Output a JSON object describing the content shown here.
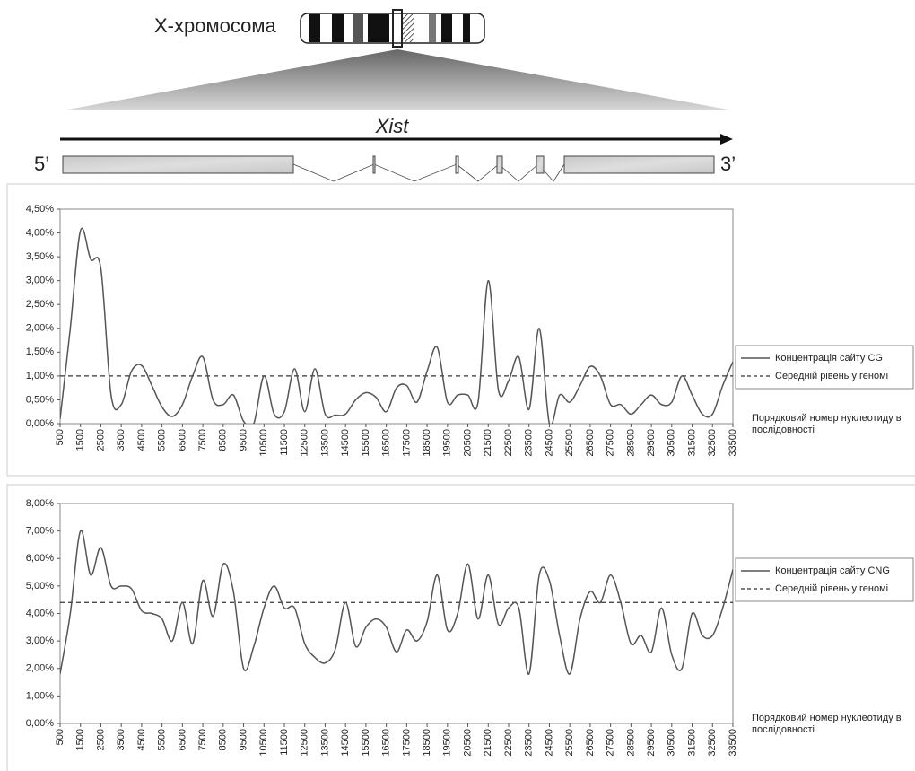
{
  "diagram": {
    "chromosome_label": "X-хромосома",
    "gene_label": "Xist",
    "left_end": "5’",
    "right_end": "3’"
  },
  "chart_data": [
    {
      "type": "line",
      "x": [
        500,
        1000,
        1500,
        2000,
        2500,
        3000,
        3500,
        4000,
        4500,
        5000,
        5500,
        6000,
        6500,
        7000,
        7500,
        8000,
        8500,
        9000,
        9500,
        10000,
        10500,
        11000,
        11500,
        12000,
        12500,
        13000,
        13500,
        14000,
        14500,
        15000,
        15500,
        16000,
        16500,
        17000,
        17500,
        18000,
        18500,
        19000,
        19500,
        20000,
        20500,
        21000,
        21500,
        22000,
        22500,
        23000,
        23500,
        24000,
        24500,
        25000,
        25500,
        26000,
        26500,
        27000,
        27500,
        28000,
        28500,
        29000,
        29500,
        30000,
        30500,
        31000,
        31500,
        32000,
        32500,
        33000,
        33500
      ],
      "series": [
        {
          "name": "Концентрація сайту CG",
          "color": "#555555",
          "values": [
            0.1,
            2.0,
            4.05,
            3.45,
            3.25,
            0.6,
            0.4,
            1.1,
            1.22,
            0.8,
            0.35,
            0.15,
            0.4,
            1.0,
            1.4,
            0.5,
            0.4,
            0.6,
            0.05,
            0,
            1.0,
            0.2,
            0.25,
            1.15,
            0.25,
            1.15,
            0.2,
            0.18,
            0.2,
            0.5,
            0.65,
            0.55,
            0.25,
            0.75,
            0.8,
            0.45,
            1.1,
            1.6,
            0.45,
            0.6,
            0.6,
            0.45,
            3.0,
            0.7,
            0.9,
            1.4,
            0.3,
            2.0,
            0,
            0.6,
            0.45,
            0.8,
            1.2,
            1.0,
            0.4,
            0.4,
            0.2,
            0.4,
            0.6,
            0.4,
            0.45,
            1.0,
            0.6,
            0.2,
            0.2,
            0.8,
            1.3
          ]
        }
      ],
      "reference": {
        "name": "Середній рівень у геномі",
        "value": 1.0,
        "color": "#333333"
      },
      "xlim": [
        500,
        33500
      ],
      "xticks": [
        500,
        1500,
        2500,
        3500,
        4500,
        5500,
        6500,
        7500,
        8500,
        9500,
        10500,
        11500,
        12500,
        13500,
        14500,
        15500,
        16500,
        17500,
        18500,
        19500,
        20500,
        21500,
        22500,
        23500,
        24500,
        25500,
        26500,
        27500,
        28500,
        29500,
        30500,
        31500,
        32500,
        33500
      ],
      "ylim": [
        0,
        4.5
      ],
      "yticks": [
        {
          "value": 0,
          "label": "0,00%"
        },
        {
          "value": 0.5,
          "label": "0,50%"
        },
        {
          "value": 1,
          "label": "1,00%"
        },
        {
          "value": 1.5,
          "label": "1,50%"
        },
        {
          "value": 2,
          "label": "2,00%"
        },
        {
          "value": 2.5,
          "label": "2,50%"
        },
        {
          "value": 3,
          "label": "3,00%"
        },
        {
          "value": 3.5,
          "label": "3,50%"
        },
        {
          "value": 4,
          "label": "4,00%"
        },
        {
          "value": 4.5,
          "label": "4,50%"
        }
      ],
      "x_label": "Порядковий номер нуклеотиду в послідовності",
      "legend": "right"
    },
    {
      "type": "line",
      "x": [
        500,
        1000,
        1500,
        2000,
        2500,
        3000,
        3500,
        4000,
        4500,
        5000,
        5500,
        6000,
        6500,
        7000,
        7500,
        8000,
        8500,
        9000,
        9500,
        10000,
        10500,
        11000,
        11500,
        12000,
        12500,
        13000,
        13500,
        14000,
        14500,
        15000,
        15500,
        16000,
        16500,
        17000,
        17500,
        18000,
        18500,
        19000,
        19500,
        20000,
        20500,
        21000,
        21500,
        22000,
        22500,
        23000,
        23500,
        24000,
        24500,
        25000,
        25500,
        26000,
        26500,
        27000,
        27500,
        28000,
        28500,
        29000,
        29500,
        30000,
        30500,
        31000,
        31500,
        32000,
        32500,
        33000,
        33500
      ],
      "series": [
        {
          "name": "Концентрація сайту CNG",
          "color": "#555555",
          "values": [
            1.8,
            4.0,
            7.0,
            5.4,
            6.4,
            5.0,
            5.0,
            4.9,
            4.1,
            4.0,
            3.8,
            3.0,
            4.4,
            2.9,
            5.2,
            3.9,
            5.8,
            4.8,
            2.0,
            2.8,
            4.2,
            5.0,
            4.2,
            4.2,
            2.9,
            2.4,
            2.2,
            2.7,
            4.4,
            2.8,
            3.5,
            3.8,
            3.5,
            2.6,
            3.4,
            3.0,
            3.7,
            5.4,
            3.4,
            4.0,
            5.8,
            3.8,
            5.4,
            3.6,
            4.2,
            4.2,
            1.8,
            5.4,
            5.2,
            3.2,
            1.8,
            3.8,
            4.8,
            4.4,
            5.4,
            4.4,
            2.9,
            3.2,
            2.6,
            4.2,
            2.5,
            2.0,
            4.0,
            3.2,
            3.2,
            4.2,
            5.6
          ]
        }
      ],
      "reference": {
        "name": "Середній рівень у геномі",
        "value": 4.4,
        "color": "#333333"
      },
      "xlim": [
        500,
        33500
      ],
      "xticks": [
        500,
        1500,
        2500,
        3500,
        4500,
        5500,
        6500,
        7500,
        8500,
        9500,
        10500,
        11500,
        12500,
        13500,
        14500,
        15500,
        16500,
        17500,
        18500,
        19500,
        20500,
        21500,
        22500,
        23500,
        24500,
        25500,
        26500,
        27500,
        28500,
        29500,
        30500,
        31500,
        32500,
        33500
      ],
      "ylim": [
        0,
        8
      ],
      "yticks": [
        {
          "value": 0,
          "label": "0,00%"
        },
        {
          "value": 1,
          "label": "1,00%"
        },
        {
          "value": 2,
          "label": "2,00%"
        },
        {
          "value": 3,
          "label": "3,00%"
        },
        {
          "value": 4,
          "label": "4,00%"
        },
        {
          "value": 5,
          "label": "5,00%"
        },
        {
          "value": 6,
          "label": "6,00%"
        },
        {
          "value": 7,
          "label": "7,00%"
        },
        {
          "value": 8,
          "label": "8,00%"
        }
      ],
      "x_label": "Порядковий номер нуклеотиду в послідовності",
      "legend": "right"
    }
  ]
}
